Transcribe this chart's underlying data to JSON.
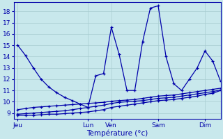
{
  "background_color": "#c8e8ec",
  "grid_color": "#a8ccd0",
  "line_color": "#0000aa",
  "title": "Température (°c)",
  "x_tick_labels": [
    "Jeu",
    "Lun",
    "Ven",
    "Sam",
    "Dim"
  ],
  "x_tick_positions": [
    0,
    9,
    12,
    18,
    24
  ],
  "xlim": [
    -0.5,
    26
  ],
  "ylim": [
    8.5,
    18.8
  ],
  "yticks": [
    9,
    10,
    11,
    12,
    13,
    14,
    15,
    16,
    17,
    18
  ],
  "n": 27,
  "series_max": [
    15.0,
    14.1,
    13.0,
    12.0,
    11.3,
    10.8,
    10.4,
    10.1,
    9.8,
    9.5,
    12.3,
    12.5,
    16.6,
    14.2,
    11.0,
    11.0,
    15.3,
    18.3,
    18.5,
    14.0,
    11.6,
    11.0,
    12.0,
    13.0,
    14.5,
    13.6,
    11.8
  ],
  "series_min": [
    8.8,
    8.8,
    8.8,
    8.85,
    8.9,
    8.9,
    8.95,
    9.0,
    9.05,
    9.1,
    9.2,
    9.3,
    9.5,
    9.6,
    9.7,
    9.8,
    9.9,
    10.0,
    10.1,
    10.15,
    10.2,
    10.3,
    10.4,
    10.5,
    10.65,
    10.75,
    11.0
  ],
  "series_avg1": [
    8.9,
    8.95,
    9.0,
    9.05,
    9.1,
    9.15,
    9.2,
    9.3,
    9.4,
    9.5,
    9.6,
    9.7,
    9.85,
    9.95,
    10.0,
    10.05,
    10.1,
    10.2,
    10.3,
    10.35,
    10.4,
    10.5,
    10.6,
    10.7,
    10.8,
    10.9,
    11.05
  ],
  "series_avg2": [
    9.3,
    9.4,
    9.5,
    9.55,
    9.6,
    9.65,
    9.7,
    9.75,
    9.8,
    9.85,
    9.9,
    9.95,
    10.05,
    10.1,
    10.15,
    10.2,
    10.3,
    10.4,
    10.5,
    10.55,
    10.6,
    10.7,
    10.8,
    10.9,
    11.0,
    11.1,
    11.2
  ]
}
